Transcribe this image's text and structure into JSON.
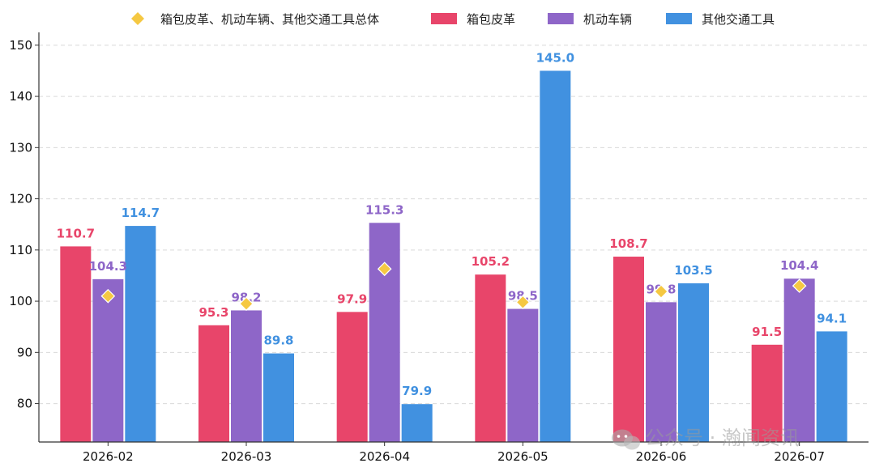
{
  "chart_data": {
    "type": "bar",
    "categories": [
      "2026-02",
      "2026-03",
      "2026-04",
      "2026-05",
      "2026-06",
      "2026-07"
    ],
    "series": [
      {
        "name": "箱包皮革",
        "color": "#E8456A",
        "values": [
          110.7,
          95.3,
          97.9,
          105.2,
          108.7,
          91.5
        ]
      },
      {
        "name": "机动车辆",
        "color": "#8E66C8",
        "values": [
          104.3,
          98.2,
          115.3,
          98.5,
          99.8,
          104.4
        ]
      },
      {
        "name": "其他交通工具",
        "color": "#4191E0",
        "values": [
          114.7,
          89.8,
          79.9,
          145.0,
          103.5,
          94.1
        ]
      }
    ],
    "overlay": {
      "type": "scatter",
      "name": "箱包皮革、机动车辆、其他交通工具总体",
      "marker": "diamond",
      "color": "#F5C842",
      "values": [
        101.0,
        99.5,
        106.3,
        99.8,
        101.9,
        103.0
      ]
    },
    "data_labels": [
      [
        "110.7",
        "95.3",
        "97.9",
        "105.2",
        "108.7",
        "91.5"
      ],
      [
        "104.3",
        "98.2",
        "115.3",
        "98.5",
        "99.8",
        "104.4"
      ],
      [
        "114.7",
        "89.8",
        "79.9",
        "145.0",
        "103.5",
        "94.1"
      ]
    ],
    "yticks": [
      80,
      90,
      100,
      110,
      120,
      130,
      140,
      150
    ],
    "ylim": [
      72.5,
      152.5
    ],
    "grid": true,
    "legend_position": "top"
  },
  "watermark": {
    "icon": "wechat-icon",
    "text": "公众号 · 瀚闻资讯"
  }
}
